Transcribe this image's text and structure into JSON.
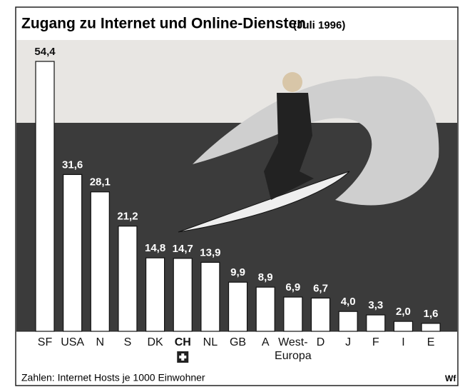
{
  "chart_data": {
    "type": "bar",
    "title": "Zugang zu Internet und Online-Diensten",
    "subtitle": "(Juli 1996)",
    "categories": [
      "SF",
      "USA",
      "N",
      "S",
      "DK",
      "CH",
      "NL",
      "GB",
      "A",
      "West-\nEuropa",
      "D",
      "J",
      "F",
      "I",
      "E"
    ],
    "values": [
      54.4,
      31.6,
      28.1,
      21.2,
      14.8,
      14.7,
      13.9,
      9.9,
      8.9,
      6.9,
      6.7,
      4.0,
      3.3,
      2.0,
      1.6
    ],
    "value_labels": [
      "54,4",
      "31,6",
      "28,1",
      "21,2",
      "14,8",
      "14,7",
      "13,9",
      "9,9",
      "8,9",
      "6,9",
      "6,7",
      "4,0",
      "3,3",
      "2,0",
      "1,6"
    ],
    "color": "#ffffff",
    "note": "Zahlen: Internet Hosts je 1000 Einwohner",
    "credit": "Wf"
  }
}
